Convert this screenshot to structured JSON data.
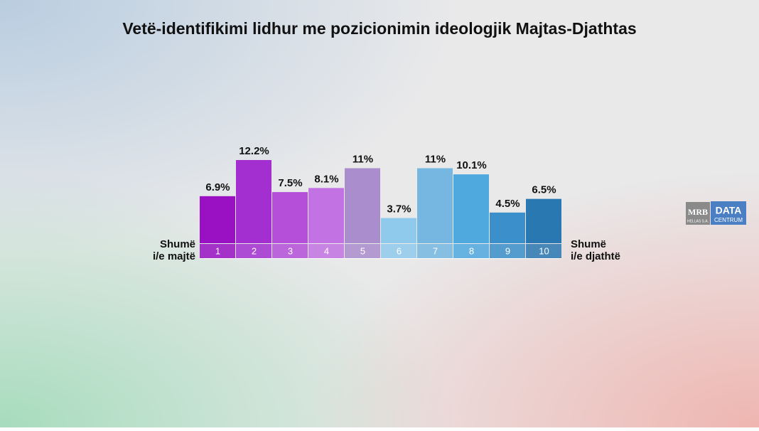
{
  "chart_data": {
    "type": "bar",
    "title": "Vetë-identifikimi lidhur me pozicionimin ideologjik Majtas-Djathtas",
    "categories": [
      "1",
      "2",
      "3",
      "4",
      "5",
      "6",
      "7",
      "8",
      "9",
      "10"
    ],
    "values": [
      6.9,
      12.2,
      7.5,
      8.1,
      11,
      3.7,
      11,
      10.1,
      4.5,
      6.5
    ],
    "value_labels": [
      "6.9%",
      "12.2%",
      "7.5%",
      "8.1%",
      "11%",
      "3.7%",
      "11%",
      "10.1%",
      "4.5%",
      "6.5%"
    ],
    "colors": [
      "#9a10c3",
      "#a42fd1",
      "#b54fd9",
      "#c272e2",
      "#a98dcc",
      "#8fcaec",
      "#75b7e1",
      "#4fa8de",
      "#3b8fca",
      "#2a78b2"
    ],
    "left_label": [
      "Shumë",
      "i/e majtë"
    ],
    "right_label": [
      "Shumë",
      "i/e djathtë"
    ]
  },
  "logo": {
    "left": "MRB",
    "left_sub": "HELLAS S.A.",
    "right": "DATA",
    "right_sub": "CENTRUM"
  }
}
